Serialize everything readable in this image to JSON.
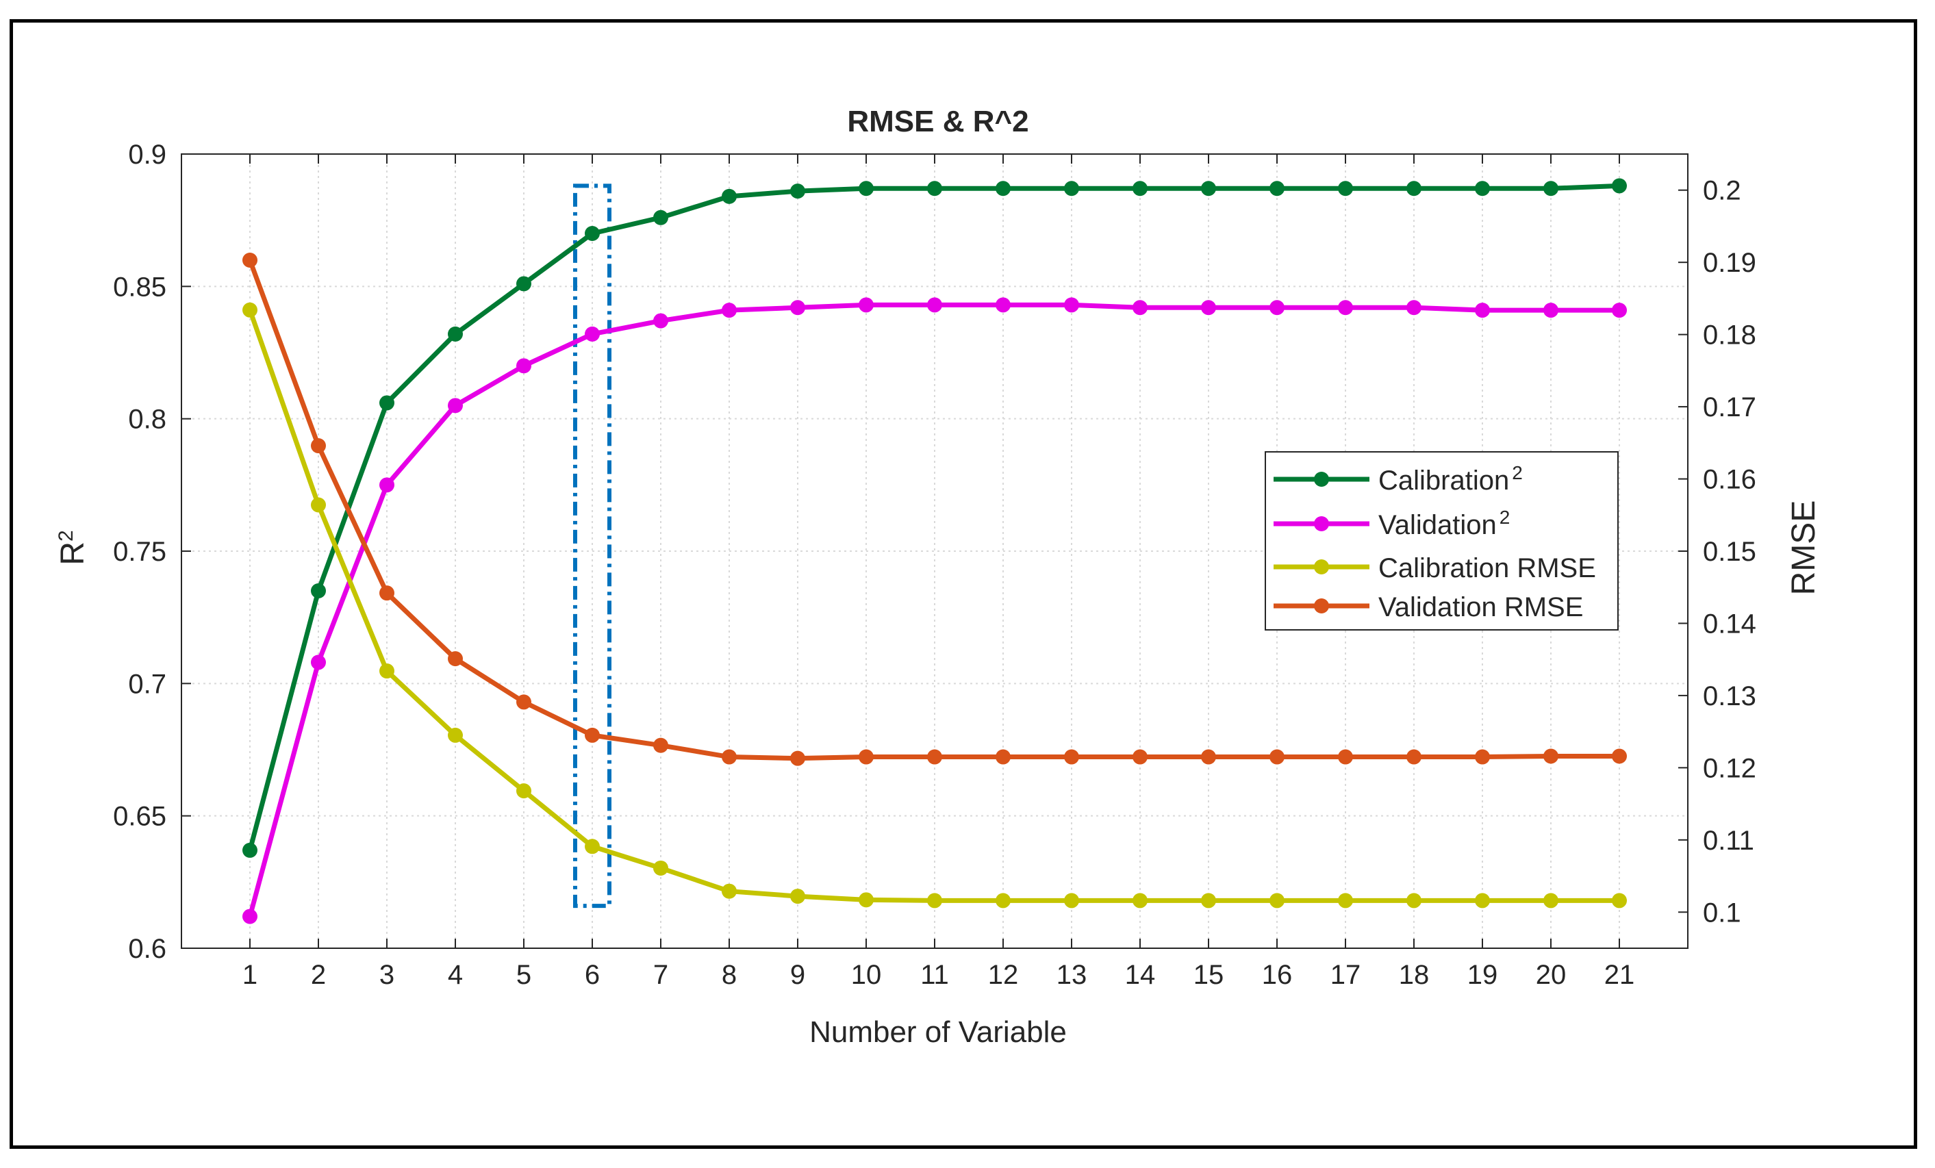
{
  "chart_data": {
    "type": "line",
    "title": "RMSE & R^2",
    "xlabel": "Number of Variable",
    "ylabel_left": {
      "base": "R",
      "sup": "2"
    },
    "ylabel_right": "RMSE",
    "x": [
      1,
      2,
      3,
      4,
      5,
      6,
      7,
      8,
      9,
      10,
      11,
      12,
      13,
      14,
      15,
      16,
      17,
      18,
      19,
      20,
      21
    ],
    "xlim": [
      0,
      22
    ],
    "ylim_left": [
      0.6,
      0.9
    ],
    "ylim_right": [
      0.095,
      0.205
    ],
    "xticks": [
      1,
      2,
      3,
      4,
      5,
      6,
      7,
      8,
      9,
      10,
      11,
      12,
      13,
      14,
      15,
      16,
      17,
      18,
      19,
      20,
      21
    ],
    "yticks_left": [
      "0.6",
      "0.65",
      "0.7",
      "0.75",
      "0.8",
      "0.85",
      "0.9"
    ],
    "yticks_right": [
      "0.1",
      "0.11",
      "0.12",
      "0.13",
      "0.14",
      "0.15",
      "0.16",
      "0.17",
      "0.18",
      "0.19",
      "0.2"
    ],
    "grid": true,
    "legend_location": "right-center",
    "series": [
      {
        "name": "Calibration",
        "sup": "2",
        "axis": "left",
        "color": "#007a33",
        "values": [
          0.637,
          0.735,
          0.806,
          0.832,
          0.851,
          0.87,
          0.876,
          0.884,
          0.886,
          0.887,
          0.887,
          0.887,
          0.887,
          0.887,
          0.887,
          0.887,
          0.887,
          0.887,
          0.887,
          0.887,
          0.888
        ]
      },
      {
        "name": "Validation",
        "sup": "2",
        "axis": "left",
        "color": "#e600e6",
        "values": [
          0.612,
          0.708,
          0.775,
          0.805,
          0.82,
          0.832,
          0.837,
          0.841,
          0.842,
          0.843,
          0.843,
          0.843,
          0.843,
          0.842,
          0.842,
          0.842,
          0.842,
          0.842,
          0.841,
          0.841,
          0.841
        ]
      },
      {
        "name": "Calibration RMSE",
        "sup": "",
        "axis": "right",
        "color": "#c4c400",
        "values": [
          0.1834,
          0.1564,
          0.1334,
          0.1245,
          0.1168,
          0.1091,
          0.1061,
          0.1029,
          0.1022,
          0.1017,
          0.1016,
          0.1016,
          0.1016,
          0.1016,
          0.1016,
          0.1016,
          0.1016,
          0.1016,
          0.1016,
          0.1016,
          0.1016
        ]
      },
      {
        "name": "Validation RMSE",
        "sup": "",
        "axis": "right",
        "color": "#d95319",
        "values": [
          0.1903,
          0.1646,
          0.1442,
          0.1351,
          0.1291,
          0.1245,
          0.1231,
          0.1215,
          0.1213,
          0.1215,
          0.1215,
          0.1215,
          0.1215,
          0.1215,
          0.1215,
          0.1215,
          0.1215,
          0.1215,
          0.1215,
          0.1216,
          0.1216
        ]
      }
    ],
    "highlight": {
      "x_range": [
        5.75,
        6.25
      ],
      "y_range_left": [
        0.616,
        0.888
      ],
      "color": "#0072bd"
    }
  }
}
